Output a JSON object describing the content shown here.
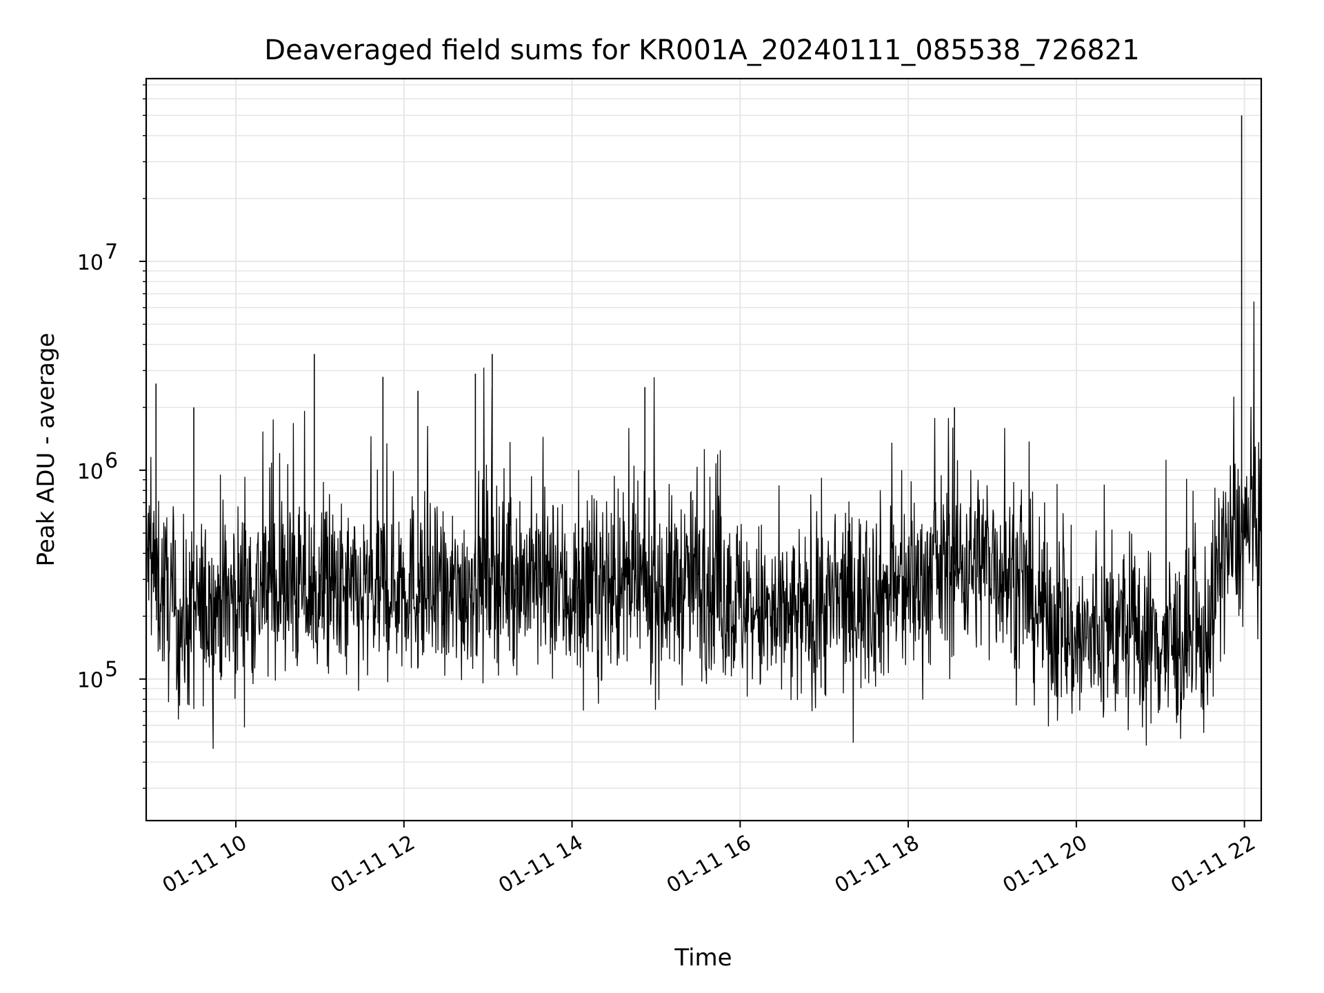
{
  "chart_data": {
    "type": "line",
    "title": "Deaveraged field sums for KR001A_20240111_085538_726821",
    "xlabel": "Time",
    "ylabel": "Peak ADU - average",
    "yscale": "log",
    "grid": true,
    "line_color": "#000000",
    "grid_color": "#e6e6e6",
    "xlim": [
      "2024-01-11 08:56",
      "2024-01-11 22:12"
    ],
    "ylim": [
      21000,
      75000000
    ],
    "x_ticks": [
      {
        "value": "2024-01-11 10:00",
        "label": "01-11 10"
      },
      {
        "value": "2024-01-11 12:00",
        "label": "01-11 12"
      },
      {
        "value": "2024-01-11 14:00",
        "label": "01-11 14"
      },
      {
        "value": "2024-01-11 16:00",
        "label": "01-11 16"
      },
      {
        "value": "2024-01-11 18:00",
        "label": "01-11 18"
      },
      {
        "value": "2024-01-11 20:00",
        "label": "01-11 20"
      },
      {
        "value": "2024-01-11 22:00",
        "label": "01-11 22"
      }
    ],
    "y_ticks": [
      {
        "value": 100000,
        "base": "10",
        "exp": "5"
      },
      {
        "value": 1000000,
        "base": "10",
        "exp": "6"
      },
      {
        "value": 10000000,
        "base": "10",
        "exp": "7"
      }
    ],
    "series": [
      {
        "x": [
          "2024-01-11 08:56",
          "2024-01-11 09:20",
          "2024-01-11 09:40",
          "2024-01-11 10:00",
          "2024-01-11 10:30",
          "2024-01-11 11:00",
          "2024-01-11 11:30",
          "2024-01-11 12:00",
          "2024-01-11 12:30",
          "2024-01-11 13:00",
          "2024-01-11 13:30",
          "2024-01-11 14:00",
          "2024-01-11 14:30",
          "2024-01-11 15:00",
          "2024-01-11 15:30",
          "2024-01-11 16:00",
          "2024-01-11 16:30",
          "2024-01-11 17:00",
          "2024-01-11 17:30",
          "2024-01-11 18:00",
          "2024-01-11 18:30",
          "2024-01-11 19:00",
          "2024-01-11 19:30",
          "2024-01-11 20:00",
          "2024-01-11 20:30",
          "2024-01-11 21:00",
          "2024-01-11 21:30",
          "2024-01-11 21:45",
          "2024-01-11 22:00",
          "2024-01-11 22:12"
        ],
        "y": [
          400000,
          180000,
          220000,
          250000,
          280000,
          260000,
          240000,
          300000,
          230000,
          350000,
          300000,
          250000,
          280000,
          260000,
          300000,
          230000,
          180000,
          220000,
          250000,
          270000,
          350000,
          380000,
          230000,
          150000,
          170000,
          150000,
          140000,
          400000,
          520000,
          480000
        ]
      }
    ],
    "spikes": [
      {
        "x": "2024-01-11 09:03",
        "y": 2600000
      },
      {
        "x": "2024-01-11 09:30",
        "y": 2000000
      },
      {
        "x": "2024-01-11 10:56",
        "y": 3600000
      },
      {
        "x": "2024-01-11 11:45",
        "y": 2800000
      },
      {
        "x": "2024-01-11 12:10",
        "y": 2400000
      },
      {
        "x": "2024-01-11 12:51",
        "y": 2900000
      },
      {
        "x": "2024-01-11 13:03",
        "y": 3600000
      },
      {
        "x": "2024-01-11 14:52",
        "y": 2500000
      },
      {
        "x": "2024-01-11 18:33",
        "y": 2000000
      },
      {
        "x": "2024-01-11 21:58",
        "y": 50000000
      }
    ]
  }
}
